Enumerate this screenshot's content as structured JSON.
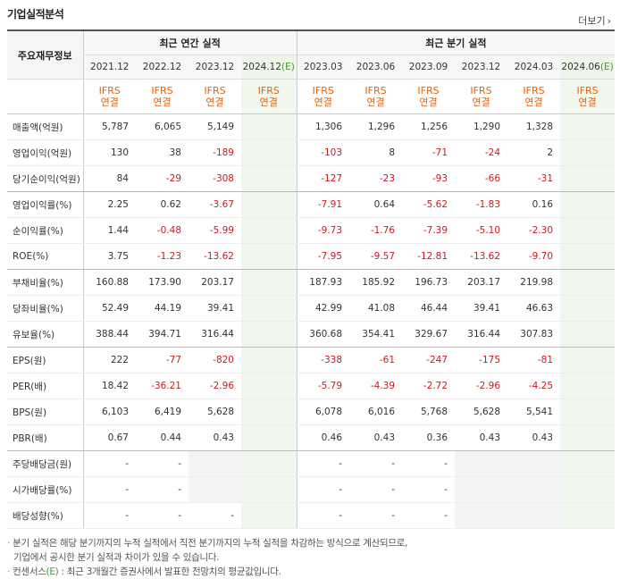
{
  "header": {
    "title": "기업실적분석",
    "more_label": "더보기",
    "more_icon": "chevron-right-icon"
  },
  "table": {
    "corner_label": "주요재무정보",
    "group_annual": "최근 연간 실적",
    "group_quarter": "최근 분기 실적",
    "periods": [
      "2021.12",
      "2022.12",
      "2023.12",
      "2024.12",
      "2023.03",
      "2023.06",
      "2023.09",
      "2023.12",
      "2024.03",
      "2024.06"
    ],
    "estimate_mark": "(E)",
    "ifrs_line1": "IFRS",
    "ifrs_line2": "연결",
    "rows": [
      {
        "label": "매출액(억원)",
        "values": [
          "5,787",
          "6,065",
          "5,149",
          "",
          "1,306",
          "1,296",
          "1,256",
          "1,290",
          "1,328",
          ""
        ]
      },
      {
        "label": "영업이익(억원)",
        "values": [
          "130",
          "38",
          "-189",
          "",
          "-103",
          "8",
          "-71",
          "-24",
          "2",
          ""
        ]
      },
      {
        "label": "당기순이익(억원)",
        "values": [
          "84",
          "-29",
          "-308",
          "",
          "-127",
          "-23",
          "-93",
          "-66",
          "-31",
          ""
        ]
      },
      {
        "label": "영업이익률(%)",
        "values": [
          "2.25",
          "0.62",
          "-3.67",
          "",
          "-7.91",
          "0.64",
          "-5.62",
          "-1.83",
          "0.16",
          ""
        ]
      },
      {
        "label": "순이익률(%)",
        "values": [
          "1.44",
          "-0.48",
          "-5.99",
          "",
          "-9.73",
          "-1.76",
          "-7.39",
          "-5.10",
          "-2.30",
          ""
        ]
      },
      {
        "label": "ROE(%)",
        "values": [
          "3.75",
          "-1.23",
          "-13.62",
          "",
          "-7.95",
          "-9.57",
          "-12.81",
          "-13.62",
          "-9.70",
          ""
        ]
      },
      {
        "label": "부채비율(%)",
        "values": [
          "160.88",
          "173.90",
          "203.17",
          "",
          "187.93",
          "185.92",
          "196.73",
          "203.17",
          "219.98",
          ""
        ]
      },
      {
        "label": "당좌비율(%)",
        "values": [
          "52.49",
          "44.19",
          "39.41",
          "",
          "42.99",
          "41.08",
          "46.44",
          "39.41",
          "46.63",
          ""
        ]
      },
      {
        "label": "유보율(%)",
        "values": [
          "388.44",
          "394.71",
          "316.44",
          "",
          "360.68",
          "354.41",
          "329.67",
          "316.44",
          "307.83",
          ""
        ]
      },
      {
        "label": "EPS(원)",
        "values": [
          "222",
          "-77",
          "-820",
          "",
          "-338",
          "-61",
          "-247",
          "-175",
          "-81",
          ""
        ]
      },
      {
        "label": "PER(배)",
        "values": [
          "18.42",
          "-36.21",
          "-2.96",
          "",
          "-5.79",
          "-4.39",
          "-2.72",
          "-2.96",
          "-4.25",
          ""
        ]
      },
      {
        "label": "BPS(원)",
        "values": [
          "6,103",
          "6,419",
          "5,628",
          "",
          "6,078",
          "6,016",
          "5,768",
          "5,628",
          "5,541",
          ""
        ]
      },
      {
        "label": "PBR(배)",
        "values": [
          "0.67",
          "0.44",
          "0.43",
          "",
          "0.46",
          "0.43",
          "0.36",
          "0.43",
          "0.43",
          ""
        ]
      },
      {
        "label": "주당배당금(원)",
        "values": [
          "-",
          "-",
          "",
          "",
          "-",
          "-",
          "-",
          "",
          "",
          ""
        ]
      },
      {
        "label": "시가배당률(%)",
        "values": [
          "-",
          "-",
          "",
          "",
          "-",
          "-",
          "-",
          "",
          "",
          ""
        ]
      },
      {
        "label": "배당성향(%)",
        "values": [
          "-",
          "-",
          "-",
          "",
          "-",
          "-",
          "-",
          "",
          "",
          ""
        ]
      }
    ]
  },
  "notes": {
    "bullet": "·",
    "line1": "분기 실적은 해당 분기까지의 누적 실적에서 직전 분기까지의 누적 실적을 차감하는 방식으로 계산되므로,",
    "line2": "기업에서 공시한 분기 실적과 차이가 있을 수 있습니다.",
    "line3_prefix": "컨센서스",
    "line3_mark": "(E)",
    "line3_rest": ": 최근 3개월간 증권사에서 발표한 전망치의 평균값입니다."
  },
  "colors": {
    "negative": "#d2161e",
    "ifrs": "#e8620a",
    "estimate_bg": "#f2f7ee",
    "estimate_mark": "#3a9c32"
  }
}
